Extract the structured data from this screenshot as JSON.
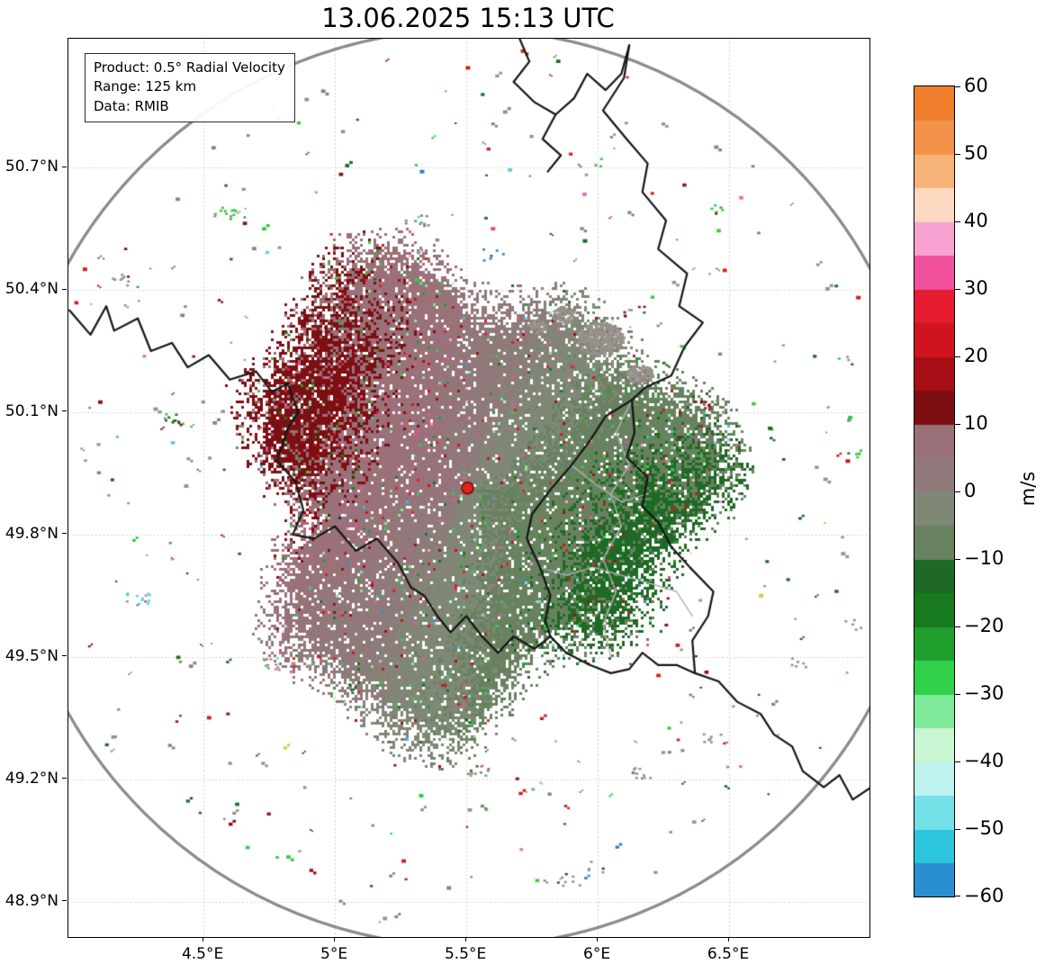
{
  "figure": {
    "title": "13.06.2025 15:13 UTC",
    "info_box": {
      "product_line": "Product: 0.5° Radial Velocity",
      "range_line": "Range: 125 km",
      "data_line": "Data: RMIB"
    }
  },
  "colors": {
    "background": "#ffffff",
    "grid": "#c9c9c9",
    "range_ring": "#8a8a8a",
    "national_border": "#151515",
    "regional_border": "#b3b3b3",
    "radar_dot_fill": "#e02417",
    "radar_dot_edge": "#7d0a06"
  },
  "chart_data": {
    "type": "heatmap",
    "subtype": "doppler-radar-ppi-radial-velocity",
    "title": "13.06.2025 15:13 UTC",
    "product": "0.5° Radial Velocity",
    "data_source": "RMIB",
    "units": "m/s",
    "range_ring_km": 125,
    "x_axis": {
      "tick_labels": [
        "4.5°E",
        "5°E",
        "5.5°E",
        "6°E",
        "6.5°E"
      ],
      "tick_values": [
        4.5,
        5.0,
        5.5,
        6.0,
        6.5
      ],
      "lim": [
        3.986,
        7.034
      ]
    },
    "y_axis": {
      "tick_labels": [
        "50.7°N",
        "50.4°N",
        "50.1°N",
        "49.8°N",
        "49.5°N",
        "49.2°N",
        "48.9°N"
      ],
      "tick_values": [
        50.7,
        50.4,
        50.1,
        49.8,
        49.5,
        49.2,
        48.9
      ],
      "lim": [
        48.813,
        51.016
      ]
    },
    "grid": {
      "style": "dotted",
      "on": true
    },
    "radar_site": {
      "lon": 5.505,
      "lat": 49.914
    },
    "colorbar": {
      "label": "m/s",
      "vmin": -60,
      "vmax": 60,
      "tick_values": [
        60,
        50,
        40,
        30,
        20,
        10,
        0,
        -10,
        -20,
        -30,
        -40,
        -50,
        -60
      ],
      "tick_labels": [
        "60",
        "50",
        "40",
        "30",
        "20",
        "10",
        "0",
        "−10",
        "−20",
        "−30",
        "−40",
        "−50",
        "−60"
      ],
      "stops": [
        [
          55,
          60,
          "#ef7f2c"
        ],
        [
          50,
          55,
          "#f2924b"
        ],
        [
          45,
          50,
          "#f7b377"
        ],
        [
          40,
          45,
          "#fcd9c0"
        ],
        [
          35,
          40,
          "#f8a3d2"
        ],
        [
          30,
          35,
          "#f2519c"
        ],
        [
          25,
          30,
          "#e51c30"
        ],
        [
          20,
          25,
          "#cf1420"
        ],
        [
          15,
          20,
          "#a60f16"
        ],
        [
          10,
          15,
          "#7d0f13"
        ],
        [
          5,
          10,
          "#9a7079"
        ],
        [
          0,
          5,
          "#90797b"
        ],
        [
          -5,
          0,
          "#7e8875"
        ],
        [
          -10,
          -5,
          "#68825f"
        ],
        [
          -15,
          -10,
          "#1e6a24"
        ],
        [
          -20,
          -15,
          "#187a1f"
        ],
        [
          -25,
          -20,
          "#1f9e2e"
        ],
        [
          -30,
          -25,
          "#2fd148"
        ],
        [
          -35,
          -30,
          "#7fe99a"
        ],
        [
          -40,
          -35,
          "#c8f6d2"
        ],
        [
          -45,
          -40,
          "#bdf2ef"
        ],
        [
          -50,
          -45,
          "#74e0e8"
        ],
        [
          -55,
          -50,
          "#2ec6dd"
        ],
        [
          -60,
          -55,
          "#2a8fd0"
        ]
      ]
    },
    "velocity_field": {
      "description": "Speckled precipitation echo roughly 60 km across centred on the radar. Outbound (positive, red/maroon 0 to +20 m/s) velocities to the W/NW of the radar; inbound (negative, green 0 to -20 m/s) velocities to the E/SE. Zero isodop runs SW-NE through the radar site. Sparse noisy speckles (gray, green, red, pink, cyan, blue, yellow) scattered out to the 125 km range ring.",
      "outbound_sector": "NW",
      "inbound_sector": "SE",
      "typical_outbound_ms": 12,
      "typical_inbound_ms": -12,
      "echo_radius_km": 60,
      "zero_isodop_orientation": "SW-NE"
    },
    "notable_pixels": [
      {
        "lon": 5.33,
        "lat": 50.69,
        "color": "#2b7fd0"
      },
      {
        "lon": 6.62,
        "lat": 49.65,
        "color": "#e2c23c"
      },
      {
        "lon": 6.95,
        "lat": 49.98,
        "color": "#c01828"
      },
      {
        "lon": 5.6,
        "lat": 50.55,
        "color": "#d4548c"
      },
      {
        "lon": 5.95,
        "lat": 50.52,
        "color": "#1c6b22"
      }
    ],
    "map_borders": {
      "black": [
        [
          [
            3.99,
            50.35
          ],
          [
            4.07,
            50.29
          ],
          [
            4.13,
            50.36
          ],
          [
            4.16,
            50.3
          ],
          [
            4.25,
            50.33
          ],
          [
            4.3,
            50.25
          ],
          [
            4.38,
            50.27
          ],
          [
            4.44,
            50.21
          ],
          [
            4.52,
            50.24
          ],
          [
            4.6,
            50.18
          ],
          [
            4.7,
            50.2
          ],
          [
            4.76,
            50.15
          ],
          [
            4.82,
            50.17
          ],
          [
            4.86,
            50.1
          ],
          [
            4.82,
            50.06
          ],
          [
            4.78,
            49.98
          ],
          [
            4.85,
            49.93
          ],
          [
            4.88,
            49.86
          ],
          [
            4.84,
            49.8
          ],
          [
            4.92,
            49.79
          ],
          [
            5.0,
            49.82
          ],
          [
            5.08,
            49.76
          ],
          [
            5.16,
            49.79
          ],
          [
            5.24,
            49.73
          ],
          [
            5.29,
            49.67
          ],
          [
            5.34,
            49.65
          ],
          [
            5.39,
            49.6
          ],
          [
            5.44,
            49.56
          ],
          [
            5.5,
            49.6
          ],
          [
            5.56,
            49.55
          ],
          [
            5.62,
            49.51
          ],
          [
            5.68,
            49.55
          ],
          [
            5.76,
            49.52
          ],
          [
            5.82,
            49.55
          ]
        ],
        [
          [
            5.7,
            51.02
          ],
          [
            5.74,
            50.96
          ],
          [
            5.68,
            50.91
          ],
          [
            5.76,
            50.86
          ],
          [
            5.84,
            50.83
          ],
          [
            5.91,
            50.87
          ],
          [
            5.96,
            50.93
          ],
          [
            6.03,
            50.89
          ],
          [
            6.09,
            50.93
          ],
          [
            6.12,
            51.0
          ]
        ],
        [
          [
            5.84,
            50.83
          ],
          [
            5.79,
            50.77
          ],
          [
            5.86,
            50.73
          ],
          [
            5.81,
            50.69
          ]
        ],
        [
          [
            6.12,
            51.0
          ],
          [
            6.1,
            50.92
          ],
          [
            6.02,
            50.84
          ],
          [
            6.11,
            50.77
          ],
          [
            6.19,
            50.71
          ],
          [
            6.17,
            50.64
          ],
          [
            6.26,
            50.57
          ],
          [
            6.23,
            50.5
          ],
          [
            6.34,
            50.44
          ],
          [
            6.31,
            50.36
          ],
          [
            6.4,
            50.32
          ],
          [
            6.33,
            50.26
          ],
          [
            6.28,
            50.19
          ],
          [
            6.18,
            50.16
          ],
          [
            6.13,
            50.13
          ]
        ],
        [
          [
            6.13,
            50.13
          ],
          [
            6.03,
            50.09
          ],
          [
            5.97,
            50.03
          ],
          [
            5.9,
            49.97
          ],
          [
            5.82,
            49.91
          ],
          [
            5.75,
            49.85
          ],
          [
            5.73,
            49.79
          ],
          [
            5.78,
            49.72
          ],
          [
            5.82,
            49.65
          ],
          [
            5.8,
            49.59
          ],
          [
            5.82,
            49.55
          ]
        ],
        [
          [
            5.82,
            49.55
          ],
          [
            5.88,
            49.51
          ],
          [
            5.97,
            49.48
          ],
          [
            6.05,
            49.46
          ],
          [
            6.12,
            49.47
          ],
          [
            6.17,
            49.51
          ],
          [
            6.23,
            49.48
          ],
          [
            6.3,
            49.48
          ],
          [
            6.37,
            49.46
          ]
        ],
        [
          [
            6.13,
            50.13
          ],
          [
            6.14,
            50.05
          ],
          [
            6.11,
            49.99
          ],
          [
            6.19,
            49.94
          ],
          [
            6.17,
            49.87
          ],
          [
            6.23,
            49.83
          ],
          [
            6.28,
            49.77
          ],
          [
            6.35,
            49.72
          ],
          [
            6.44,
            49.66
          ],
          [
            6.42,
            49.6
          ],
          [
            6.36,
            49.54
          ],
          [
            6.37,
            49.46
          ]
        ],
        [
          [
            6.37,
            49.46
          ],
          [
            6.46,
            49.44
          ],
          [
            6.53,
            49.39
          ],
          [
            6.62,
            49.36
          ],
          [
            6.67,
            49.31
          ],
          [
            6.74,
            49.28
          ],
          [
            6.78,
            49.22
          ],
          [
            6.86,
            49.18
          ],
          [
            6.92,
            49.21
          ],
          [
            6.97,
            49.15
          ],
          [
            7.04,
            49.18
          ]
        ]
      ],
      "gray": [
        [
          [
            6.13,
            50.13
          ],
          [
            6.07,
            50.05
          ],
          [
            6.12,
            49.97
          ],
          [
            6.05,
            49.9
          ],
          [
            6.09,
            49.82
          ],
          [
            6.02,
            49.74
          ],
          [
            6.07,
            49.66
          ],
          [
            6.02,
            49.58
          ],
          [
            6.05,
            49.5
          ]
        ],
        [
          [
            5.78,
            49.72
          ],
          [
            5.88,
            49.7
          ],
          [
            5.98,
            49.72
          ],
          [
            6.09,
            49.7
          ],
          [
            6.2,
            49.68
          ],
          [
            6.3,
            49.66
          ],
          [
            6.36,
            49.6
          ]
        ],
        [
          [
            5.9,
            49.97
          ],
          [
            6.0,
            49.92
          ],
          [
            6.09,
            49.88
          ],
          [
            6.19,
            49.9
          ]
        ]
      ]
    }
  }
}
